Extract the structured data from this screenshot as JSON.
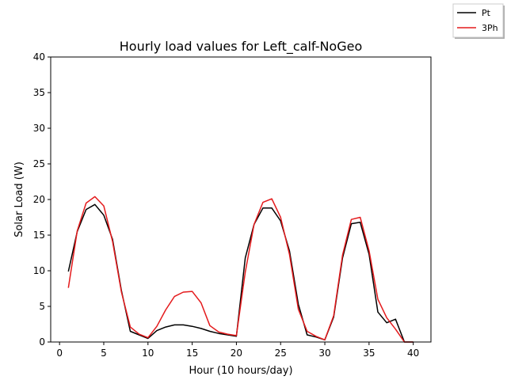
{
  "chart_data": {
    "type": "line",
    "title": "Hourly load values for Left_calf-NoGeo",
    "xlabel": "Hour (10 hours/day)",
    "ylabel": "Solar Load (W)",
    "xlim": [
      -1,
      42
    ],
    "ylim": [
      0,
      40
    ],
    "xticks": [
      0,
      5,
      10,
      15,
      20,
      25,
      30,
      35,
      40
    ],
    "yticks": [
      0,
      5,
      10,
      15,
      20,
      25,
      30,
      35,
      40
    ],
    "grid": false,
    "legend_placement": "top-right, outside axes",
    "x": [
      1,
      2,
      3,
      4,
      5,
      6,
      7,
      8,
      9,
      10,
      11,
      12,
      13,
      14,
      15,
      16,
      17,
      18,
      19,
      20,
      21,
      22,
      23,
      24,
      25,
      26,
      27,
      28,
      29,
      30,
      31,
      32,
      33,
      34,
      35,
      36,
      37,
      38,
      39,
      40
    ],
    "series": [
      {
        "name": "Pt",
        "color": "#000000",
        "values": [
          9.9,
          15.5,
          18.6,
          19.3,
          17.8,
          14.4,
          7.2,
          1.5,
          1.0,
          0.5,
          1.6,
          2.1,
          2.4,
          2.4,
          2.2,
          1.9,
          1.5,
          1.2,
          1.0,
          0.8,
          11.8,
          16.5,
          18.8,
          18.8,
          17.0,
          12.8,
          5.3,
          1.0,
          0.7,
          0.3,
          3.5,
          11.8,
          16.6,
          16.8,
          12.3,
          4.2,
          2.7,
          3.2,
          0.0,
          0.0
        ]
      },
      {
        "name": "3Ph",
        "color": "#e41a1c",
        "values": [
          7.6,
          15.6,
          19.5,
          20.4,
          19.1,
          14.1,
          7.0,
          2.1,
          1.1,
          0.6,
          2.2,
          4.5,
          6.4,
          7.0,
          7.1,
          5.5,
          2.3,
          1.4,
          1.1,
          0.9,
          9.8,
          16.5,
          19.6,
          20.1,
          17.5,
          12.3,
          4.6,
          1.5,
          0.8,
          0.3,
          3.7,
          12.2,
          17.2,
          17.5,
          12.8,
          6.0,
          3.4,
          1.8,
          0.0,
          0.0
        ]
      }
    ]
  }
}
